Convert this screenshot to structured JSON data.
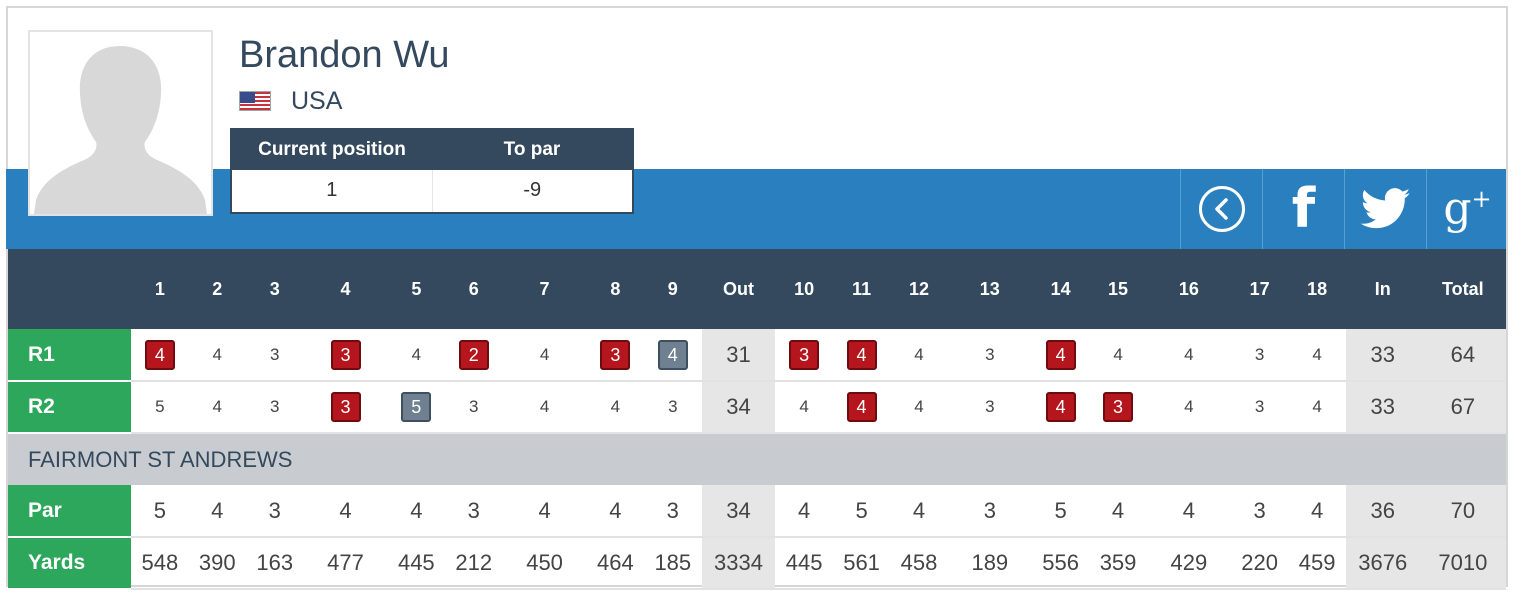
{
  "player": {
    "name": "Brandon Wu",
    "country": "USA"
  },
  "position_table": {
    "headers": [
      "Current position",
      "To par"
    ],
    "values": [
      "1",
      "-9"
    ]
  },
  "social": {
    "icons": [
      "back-circle-icon",
      "facebook-icon",
      "twitter-icon",
      "google-plus-icon"
    ],
    "facebook_glyph": "f",
    "google_glyph": "g",
    "google_plus": "+"
  },
  "scorecard": {
    "holes_header": [
      "1",
      "2",
      "3",
      "4",
      "5",
      "6",
      "7",
      "8",
      "9",
      "Out",
      "10",
      "11",
      "12",
      "13",
      "14",
      "15",
      "16",
      "17",
      "18",
      "In",
      "Total"
    ],
    "rounds": [
      {
        "label": "R1",
        "cells": [
          {
            "v": "4",
            "t": "birdie"
          },
          {
            "v": "4",
            "t": ""
          },
          {
            "v": "3",
            "t": ""
          },
          {
            "v": "3",
            "t": "birdie"
          },
          {
            "v": "4",
            "t": ""
          },
          {
            "v": "2",
            "t": "birdie"
          },
          {
            "v": "4",
            "t": ""
          },
          {
            "v": "3",
            "t": "birdie"
          },
          {
            "v": "4",
            "t": "bogey"
          },
          {
            "v": "31",
            "t": "tot"
          },
          {
            "v": "3",
            "t": "birdie"
          },
          {
            "v": "4",
            "t": "birdie"
          },
          {
            "v": "4",
            "t": ""
          },
          {
            "v": "3",
            "t": ""
          },
          {
            "v": "4",
            "t": "birdie"
          },
          {
            "v": "4",
            "t": ""
          },
          {
            "v": "4",
            "t": ""
          },
          {
            "v": "3",
            "t": ""
          },
          {
            "v": "4",
            "t": ""
          },
          {
            "v": "33",
            "t": "tot"
          },
          {
            "v": "64",
            "t": "tot"
          }
        ]
      },
      {
        "label": "R2",
        "cells": [
          {
            "v": "5",
            "t": ""
          },
          {
            "v": "4",
            "t": ""
          },
          {
            "v": "3",
            "t": ""
          },
          {
            "v": "3",
            "t": "birdie"
          },
          {
            "v": "5",
            "t": "bogey"
          },
          {
            "v": "3",
            "t": ""
          },
          {
            "v": "4",
            "t": ""
          },
          {
            "v": "4",
            "t": ""
          },
          {
            "v": "3",
            "t": ""
          },
          {
            "v": "34",
            "t": "tot"
          },
          {
            "v": "4",
            "t": ""
          },
          {
            "v": "4",
            "t": "birdie"
          },
          {
            "v": "4",
            "t": ""
          },
          {
            "v": "3",
            "t": ""
          },
          {
            "v": "4",
            "t": "birdie"
          },
          {
            "v": "3",
            "t": "birdie"
          },
          {
            "v": "4",
            "t": ""
          },
          {
            "v": "3",
            "t": ""
          },
          {
            "v": "4",
            "t": ""
          },
          {
            "v": "33",
            "t": "tot"
          },
          {
            "v": "67",
            "t": "tot"
          }
        ]
      }
    ],
    "course_name": "FAIRMONT ST ANDREWS",
    "par": {
      "label": "Par",
      "values": [
        "5",
        "4",
        "3",
        "4",
        "4",
        "3",
        "4",
        "4",
        "3",
        "34",
        "4",
        "5",
        "4",
        "3",
        "5",
        "4",
        "4",
        "3",
        "4",
        "36",
        "70"
      ]
    },
    "yards": {
      "label": "Yards",
      "values": [
        "548",
        "390",
        "163",
        "477",
        "445",
        "212",
        "450",
        "464",
        "185",
        "3334",
        "445",
        "561",
        "458",
        "189",
        "556",
        "359",
        "429",
        "220",
        "459",
        "3676",
        "7010"
      ]
    }
  },
  "colors": {
    "navy": "#34495e",
    "blue": "#2a7fbf",
    "green": "#2ca75c",
    "birdie_red": "#b5161d",
    "bogey_gray": "#6f8191"
  }
}
